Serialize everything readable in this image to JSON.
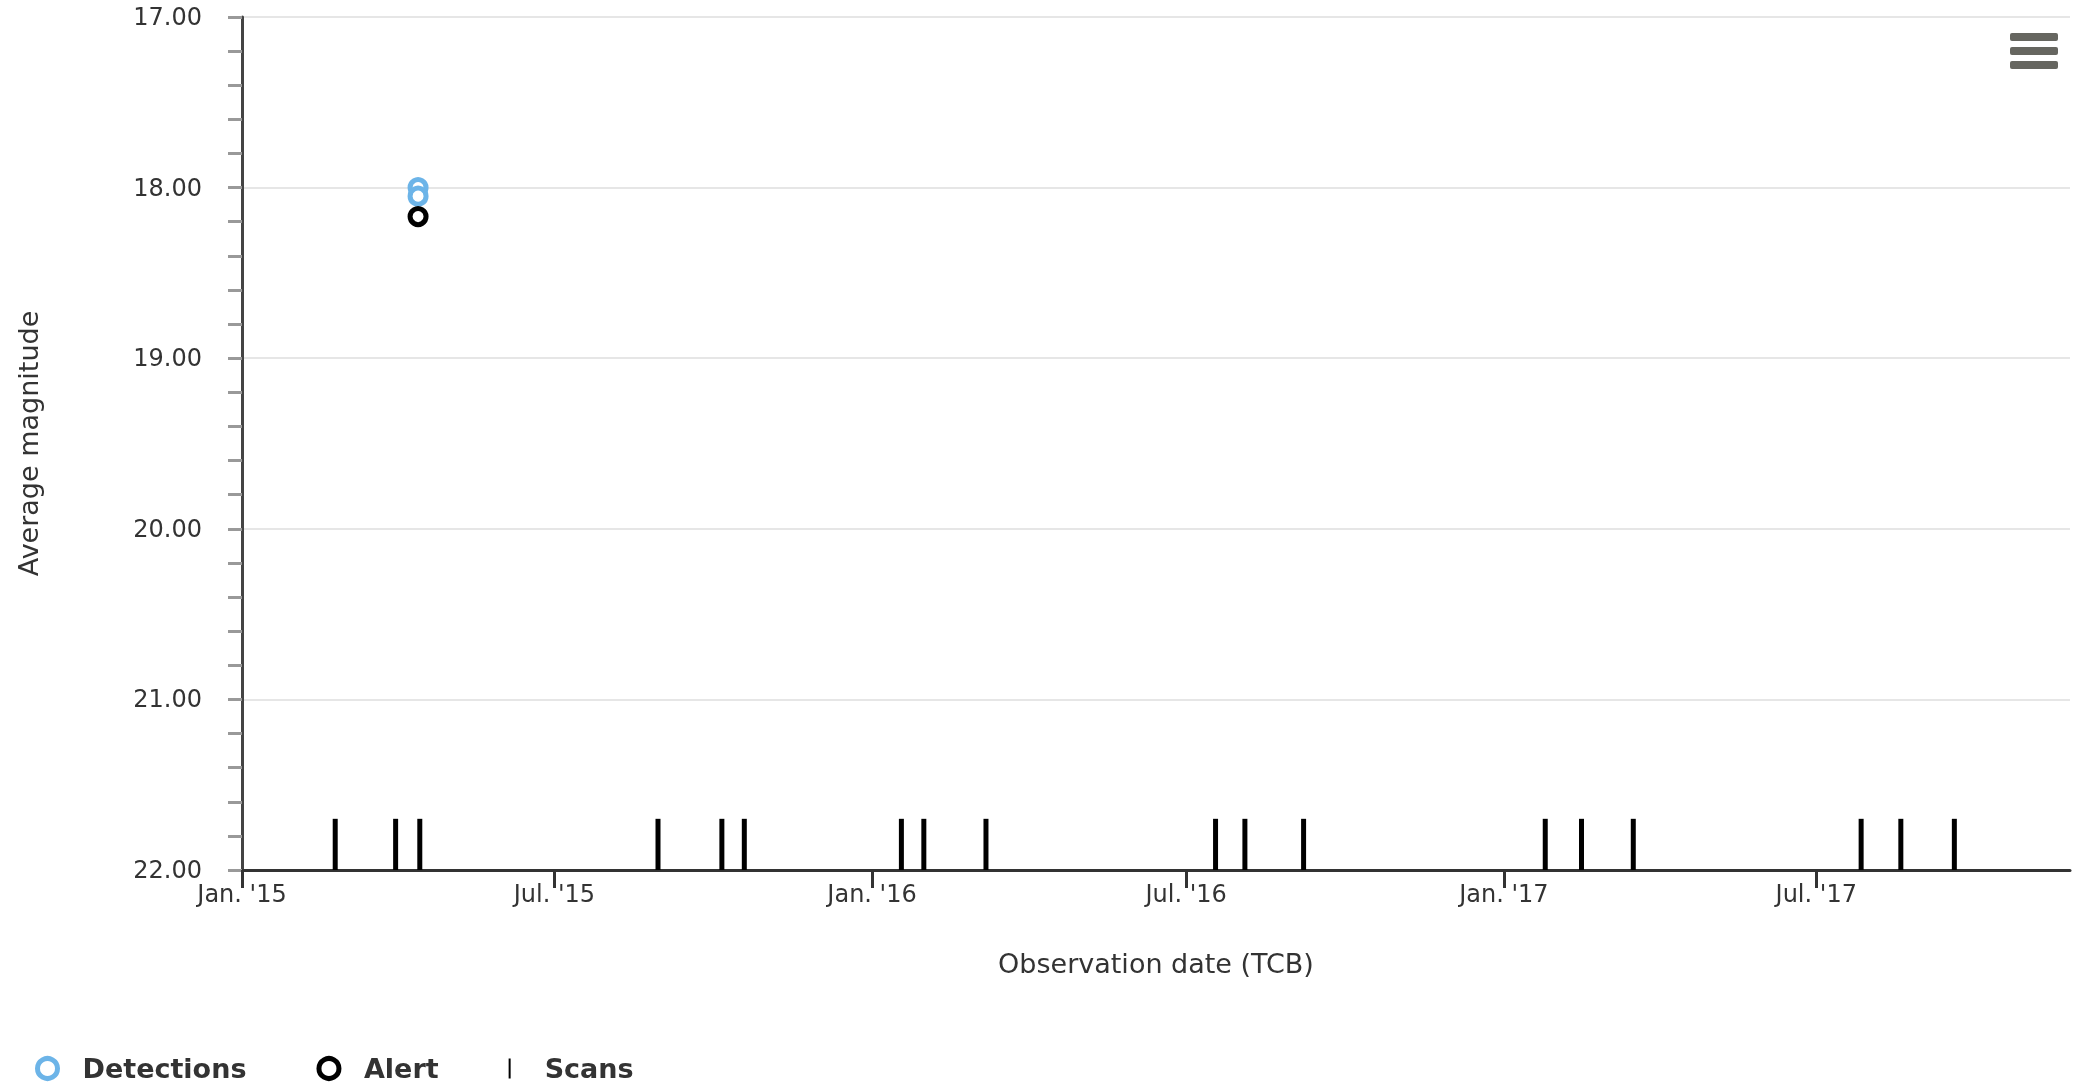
{
  "chart_data": {
    "type": "scatter",
    "xlabel": "Observation date (TCB)",
    "ylabel": "Average magnitude",
    "xlim": [
      "2015-01-01",
      "2017-11-25"
    ],
    "xticks": [
      {
        "value": "2015-01-01",
        "label": "Jan. '15"
      },
      {
        "value": "2015-07-01",
        "label": "Jul. '15"
      },
      {
        "value": "2016-01-01",
        "label": "Jan. '16"
      },
      {
        "value": "2016-07-01",
        "label": "Jul. '16"
      },
      {
        "value": "2017-01-01",
        "label": "Jan. '17"
      },
      {
        "value": "2017-07-01",
        "label": "Jul. '17"
      }
    ],
    "ylim": [
      22,
      17
    ],
    "yticks": [
      {
        "value": 17,
        "label": "17.00"
      },
      {
        "value": 18,
        "label": "18.00"
      },
      {
        "value": 19,
        "label": "19.00"
      },
      {
        "value": 20,
        "label": "20.00"
      },
      {
        "value": 21,
        "label": "21.00"
      },
      {
        "value": 22,
        "label": "22.00"
      }
    ],
    "grid": "y",
    "legend": "bottom left",
    "marker": "circle",
    "series": [
      {
        "name": "Detections",
        "color": "#6cb4e8",
        "x": [
          "2015-04-13",
          "2015-04-13"
        ],
        "values": [
          18.0,
          18.05
        ]
      },
      {
        "name": "Alert",
        "color": "#000000",
        "x": [
          "2015-04-13"
        ],
        "values": [
          18.17
        ]
      },
      {
        "name": "Scans",
        "type": "bar",
        "color": "#000000",
        "x": [
          "2015-02-24",
          "2015-03-31",
          "2015-04-14",
          "2015-08-30",
          "2015-10-06",
          "2015-10-19",
          "2016-01-18",
          "2016-01-31",
          "2016-03-07",
          "2016-07-18",
          "2016-08-04",
          "2016-09-07",
          "2017-01-25",
          "2017-02-15",
          "2017-03-17",
          "2017-07-27",
          "2017-08-19",
          "2017-09-19"
        ],
        "values": [
          -0.3,
          -0.3,
          -0.3,
          -0.3,
          -0.3,
          -0.3,
          -0.3,
          -0.3,
          -0.3,
          -0.3,
          -0.3,
          -0.3,
          -0.3,
          -0.3,
          -0.3,
          -0.3,
          -0.3,
          -0.3
        ],
        "base": [
          22,
          22,
          22,
          22,
          22,
          22,
          22,
          22,
          22,
          22,
          22,
          22,
          22,
          22,
          22,
          22,
          22,
          22
        ]
      }
    ]
  }
}
